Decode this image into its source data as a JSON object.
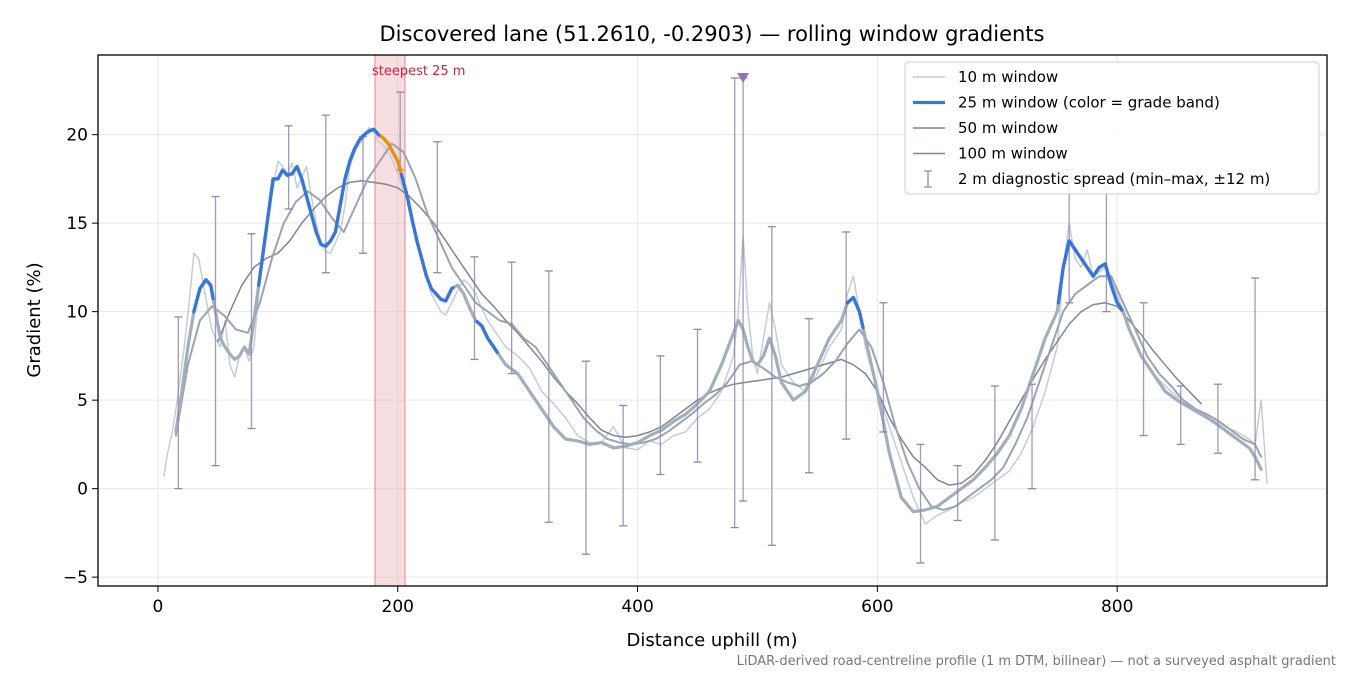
{
  "chart_data": {
    "type": "line",
    "title": "Discovered lane (51.2610, -0.2903) — rolling window gradients",
    "xlabel": "Distance uphill (m)",
    "ylabel": "Gradient (%)",
    "xlim": [
      -50,
      975
    ],
    "ylim": [
      -5.5,
      24.5
    ],
    "xticks": [
      0,
      200,
      400,
      600,
      800
    ],
    "yticks": [
      -5,
      0,
      5,
      10,
      15,
      20
    ],
    "ytick_labels": [
      "−5",
      "0",
      "5",
      "10",
      "15",
      "20"
    ],
    "grid": true,
    "legend": {
      "position": "top-right",
      "entries": [
        {
          "label": "10 m window",
          "color": "#c5ccd6",
          "kind": "line"
        },
        {
          "label": "25 m window (color = grade band)",
          "color": "#3a76d6",
          "kind": "line"
        },
        {
          "label": "50 m window",
          "color": "#9aa3b2",
          "kind": "line"
        },
        {
          "label": "100 m window",
          "color": "#7f8594",
          "kind": "line"
        },
        {
          "label": "2 m diagnostic spread (min–max, ±12 m)",
          "color": "#8f87b3",
          "kind": "errorbar"
        }
      ]
    },
    "annotations": {
      "steepest_label": "steepest 25 m",
      "steepest_span": [
        181,
        206
      ],
      "spike_marker": {
        "x": 488,
        "y": 23.2
      },
      "footnote": "LiDAR-derived road-centreline profile (1 m DTM, bilinear) — not a surveyed asphalt gradient"
    },
    "colors": {
      "band_steep": "#3a76d6",
      "band_peak": "#e8920c",
      "band_base": "#a3adbb",
      "steepest_shade": "#e7a9b0",
      "steepest_text": "#c0283a",
      "spread": "#8f87b3"
    },
    "series": [
      {
        "name": "10 m window",
        "x": [
          5,
          8,
          12,
          15,
          18,
          22,
          26,
          30,
          34,
          38,
          42,
          45,
          48,
          52,
          56,
          60,
          64,
          68,
          72,
          76,
          80,
          84,
          88,
          92,
          96,
          100,
          104,
          108,
          112,
          116,
          120,
          124,
          128,
          132,
          136,
          140,
          144,
          148,
          152,
          156,
          160,
          164,
          168,
          172,
          176,
          180,
          184,
          188,
          192,
          196,
          200,
          204,
          208,
          212,
          216,
          220,
          224,
          228,
          232,
          236,
          240,
          245,
          250,
          255,
          260,
          265,
          270,
          275,
          280,
          285,
          290,
          300,
          310,
          320,
          330,
          340,
          350,
          360,
          370,
          380,
          390,
          400,
          410,
          420,
          430,
          440,
          450,
          460,
          470,
          480,
          484,
          488,
          492,
          496,
          500,
          505,
          510,
          515,
          520,
          530,
          540,
          550,
          560,
          570,
          575,
          580,
          585,
          590,
          600,
          610,
          620,
          630,
          640,
          650,
          660,
          670,
          680,
          690,
          700,
          710,
          720,
          730,
          740,
          750,
          755,
          760,
          765,
          770,
          775,
          780,
          790,
          800,
          810,
          820,
          830,
          840,
          850,
          860,
          870,
          880,
          890,
          900,
          910,
          915,
          920,
          925
        ],
        "y": [
          0.7,
          2.0,
          3.2,
          4.5,
          6.0,
          8.0,
          10.5,
          13.3,
          13.0,
          11.5,
          10.0,
          9.0,
          8.5,
          8.0,
          9.5,
          7.0,
          6.3,
          7.5,
          8.0,
          7.2,
          8.0,
          11.0,
          13.5,
          15.5,
          17.0,
          18.5,
          18.2,
          17.8,
          18.4,
          17.0,
          17.6,
          18.2,
          16.5,
          15.0,
          13.8,
          13.4,
          13.3,
          13.9,
          14.5,
          16.0,
          18.2,
          19.0,
          19.5,
          19.8,
          20.4,
          20.2,
          19.6,
          19.4,
          19.0,
          18.5,
          17.8,
          17.0,
          16.5,
          15.5,
          14.0,
          13.0,
          12.0,
          11.0,
          10.5,
          10.0,
          9.8,
          10.5,
          11.2,
          11.8,
          11.5,
          11.0,
          10.2,
          9.5,
          9.0,
          8.5,
          8.0,
          7.5,
          6.8,
          5.5,
          4.8,
          4.0,
          3.0,
          2.6,
          2.6,
          3.5,
          2.3,
          2.2,
          2.7,
          2.5,
          3.0,
          3.2,
          4.0,
          4.5,
          5.5,
          7.5,
          10.0,
          14.3,
          10.0,
          7.5,
          6.5,
          8.5,
          10.5,
          9.0,
          7.0,
          6.0,
          5.5,
          6.5,
          8.0,
          9.0,
          11.0,
          12.0,
          10.0,
          8.0,
          5.5,
          3.5,
          1.5,
          -0.5,
          -2.0,
          -1.5,
          -1.2,
          -0.8,
          -0.5,
          0.0,
          0.5,
          1.0,
          2.0,
          3.5,
          5.5,
          8.0,
          12.5,
          15.0,
          13.0,
          12.5,
          13.5,
          12.0,
          12.5,
          11.0,
          9.0,
          7.5,
          6.5,
          5.8,
          5.2,
          4.8,
          4.3,
          4.0,
          3.5,
          3.2,
          2.8,
          2.5,
          5.0,
          0.3
        ]
      },
      {
        "name": "25 m window (color = grade band)",
        "x": [
          15,
          20,
          25,
          30,
          35,
          40,
          44,
          48,
          52,
          56,
          60,
          64,
          68,
          72,
          76,
          80,
          84,
          88,
          92,
          96,
          100,
          104,
          108,
          112,
          116,
          120,
          124,
          128,
          132,
          136,
          140,
          144,
          148,
          152,
          156,
          160,
          164,
          168,
          172,
          176,
          180,
          184,
          188,
          192,
          196,
          200,
          204,
          208,
          212,
          216,
          220,
          224,
          228,
          232,
          236,
          240,
          245,
          250,
          255,
          260,
          265,
          270,
          275,
          280,
          285,
          290,
          300,
          310,
          320,
          330,
          340,
          350,
          360,
          370,
          380,
          390,
          400,
          410,
          420,
          430,
          440,
          450,
          460,
          470,
          480,
          484,
          488,
          492,
          496,
          500,
          505,
          510,
          515,
          520,
          530,
          540,
          550,
          560,
          570,
          575,
          580,
          585,
          590,
          600,
          610,
          620,
          630,
          640,
          650,
          660,
          670,
          680,
          690,
          700,
          710,
          720,
          730,
          740,
          750,
          755,
          760,
          765,
          770,
          775,
          780,
          785,
          790,
          795,
          800,
          805,
          810,
          820,
          830,
          840,
          850,
          860,
          870,
          880,
          890,
          900,
          910,
          915,
          920
        ],
        "y": [
          3.2,
          5.5,
          8.0,
          10.0,
          11.3,
          11.8,
          11.5,
          10.0,
          8.5,
          8.0,
          7.6,
          7.3,
          7.5,
          8.0,
          7.6,
          9.5,
          11.5,
          13.5,
          15.5,
          17.5,
          17.5,
          18.0,
          17.7,
          17.8,
          18.2,
          17.5,
          16.5,
          15.5,
          14.5,
          13.8,
          13.7,
          14.0,
          14.5,
          16.0,
          17.5,
          18.5,
          19.2,
          19.7,
          20.0,
          20.2,
          20.3,
          20.0,
          19.8,
          19.5,
          19.0,
          18.5,
          17.5,
          16.5,
          15.2,
          14.0,
          13.0,
          12.0,
          11.3,
          11.0,
          10.7,
          10.6,
          11.3,
          11.5,
          11.0,
          10.2,
          9.5,
          9.2,
          8.5,
          8.0,
          7.5,
          7.0,
          6.5,
          5.5,
          4.5,
          3.5,
          2.8,
          2.7,
          2.5,
          2.6,
          2.3,
          2.4,
          2.6,
          3.0,
          3.3,
          3.8,
          4.2,
          4.8,
          5.5,
          7.0,
          8.8,
          9.5,
          9.0,
          8.0,
          7.2,
          7.0,
          7.5,
          8.5,
          7.5,
          6.0,
          5.0,
          5.5,
          7.0,
          8.5,
          9.5,
          10.5,
          10.8,
          10.0,
          8.5,
          5.5,
          2.0,
          -0.5,
          -1.3,
          -1.2,
          -1.0,
          -0.5,
          0.0,
          0.5,
          1.2,
          2.0,
          3.0,
          4.5,
          6.5,
          8.5,
          10.0,
          12.5,
          14.0,
          13.5,
          13.0,
          12.5,
          12.0,
          12.5,
          12.7,
          11.5,
          10.5,
          10.0,
          9.0,
          7.5,
          6.5,
          5.5,
          5.0,
          4.6,
          4.2,
          3.8,
          3.3,
          2.8,
          2.3,
          1.8,
          1.1
        ]
      },
      {
        "name": "50 m window",
        "x": [
          15,
          25,
          35,
          45,
          55,
          65,
          75,
          85,
          95,
          105,
          115,
          125,
          135,
          145,
          155,
          165,
          175,
          185,
          195,
          205,
          215,
          225,
          235,
          245,
          255,
          265,
          275,
          285,
          295,
          305,
          315,
          325,
          335,
          345,
          355,
          365,
          375,
          385,
          395,
          405,
          415,
          425,
          435,
          445,
          455,
          465,
          475,
          485,
          495,
          505,
          515,
          525,
          535,
          545,
          555,
          565,
          575,
          585,
          595,
          605,
          615,
          625,
          635,
          645,
          655,
          665,
          675,
          685,
          695,
          705,
          715,
          725,
          735,
          745,
          755,
          765,
          775,
          785,
          795,
          805,
          815,
          825,
          835,
          845,
          855,
          865,
          875,
          885,
          895,
          905,
          915,
          920
        ],
        "y": [
          3.0,
          7.0,
          9.5,
          10.3,
          9.8,
          9.0,
          8.8,
          10.5,
          13.0,
          15.0,
          16.2,
          16.8,
          16.3,
          15.3,
          14.5,
          16.0,
          17.5,
          18.5,
          19.5,
          19.0,
          17.5,
          15.5,
          14.0,
          12.5,
          11.5,
          10.5,
          10.0,
          9.5,
          9.3,
          8.5,
          8.0,
          7.0,
          6.0,
          5.0,
          4.0,
          3.3,
          2.8,
          2.6,
          2.5,
          2.6,
          2.8,
          3.2,
          3.7,
          4.2,
          4.8,
          5.3,
          6.0,
          7.0,
          7.2,
          6.8,
          6.3,
          6.0,
          5.8,
          6.0,
          6.5,
          7.2,
          8.2,
          9.0,
          8.0,
          6.0,
          3.5,
          1.5,
          0.0,
          -1.0,
          -1.2,
          -1.0,
          -0.5,
          0.0,
          0.5,
          1.2,
          2.5,
          4.0,
          6.0,
          8.0,
          10.0,
          11.0,
          11.5,
          12.0,
          12.0,
          10.5,
          9.0,
          7.5,
          6.5,
          5.8,
          5.0,
          4.5,
          4.2,
          3.8,
          3.3,
          2.8,
          2.5,
          1.8
        ]
      },
      {
        "name": "100 m window",
        "x": [
          50,
          60,
          70,
          80,
          90,
          100,
          110,
          120,
          130,
          140,
          150,
          160,
          170,
          180,
          190,
          200,
          210,
          220,
          230,
          240,
          250,
          260,
          270,
          280,
          290,
          300,
          310,
          320,
          330,
          340,
          350,
          360,
          370,
          380,
          390,
          400,
          410,
          420,
          430,
          440,
          450,
          460,
          470,
          480,
          490,
          500,
          510,
          520,
          530,
          540,
          550,
          560,
          570,
          580,
          590,
          600,
          610,
          620,
          630,
          640,
          650,
          660,
          670,
          680,
          690,
          700,
          710,
          720,
          730,
          740,
          750,
          760,
          770,
          780,
          790,
          800,
          810,
          820,
          830,
          840,
          850,
          860,
          870
        ],
        "y": [
          8.3,
          10.0,
          11.5,
          12.5,
          13.0,
          13.3,
          14.0,
          15.0,
          15.8,
          16.5,
          17.0,
          17.3,
          17.4,
          17.3,
          17.2,
          17.0,
          16.5,
          15.8,
          15.0,
          14.0,
          13.0,
          12.0,
          11.0,
          10.3,
          9.5,
          8.8,
          8.0,
          7.2,
          6.3,
          5.5,
          4.8,
          4.0,
          3.3,
          3.0,
          2.9,
          3.0,
          3.2,
          3.5,
          4.0,
          4.5,
          5.0,
          5.4,
          5.7,
          5.9,
          6.0,
          6.1,
          6.2,
          6.3,
          6.5,
          6.7,
          6.9,
          7.1,
          7.3,
          7.0,
          6.5,
          5.5,
          4.0,
          2.8,
          1.8,
          1.2,
          0.5,
          0.2,
          0.3,
          0.8,
          1.6,
          2.6,
          3.8,
          5.0,
          6.2,
          7.3,
          8.3,
          9.3,
          10.0,
          10.4,
          10.5,
          10.3,
          9.5,
          8.7,
          7.8,
          7.0,
          6.2,
          5.5,
          4.8
        ]
      }
    ],
    "spread_bars": [
      {
        "x": 17,
        "min": 0.0,
        "max": 9.7
      },
      {
        "x": 48,
        "min": 1.3,
        "max": 16.5
      },
      {
        "x": 78,
        "min": 3.4,
        "max": 14.4
      },
      {
        "x": 109,
        "min": 15.8,
        "max": 20.5
      },
      {
        "x": 140,
        "min": 12.2,
        "max": 21.1
      },
      {
        "x": 171,
        "min": 13.3,
        "max": 19.9
      },
      {
        "x": 202,
        "min": 18.0,
        "max": 22.4
      },
      {
        "x": 233,
        "min": 12.2,
        "max": 19.6
      },
      {
        "x": 264,
        "min": 7.3,
        "max": 13.1
      },
      {
        "x": 295,
        "min": 6.5,
        "max": 12.8
      },
      {
        "x": 326,
        "min": -1.9,
        "max": 12.3
      },
      {
        "x": 357,
        "min": -3.7,
        "max": 7.2
      },
      {
        "x": 388,
        "min": -2.1,
        "max": 4.7
      },
      {
        "x": 419,
        "min": 0.8,
        "max": 7.5
      },
      {
        "x": 450,
        "min": 1.5,
        "max": 9.0
      },
      {
        "x": 481,
        "min": -2.2,
        "max": 23.2
      },
      {
        "x": 488,
        "min": -0.7,
        "max": 23.2
      },
      {
        "x": 512,
        "min": -3.2,
        "max": 14.8
      },
      {
        "x": 543,
        "min": 0.9,
        "max": 9.6
      },
      {
        "x": 574,
        "min": 2.8,
        "max": 14.5
      },
      {
        "x": 605,
        "min": 3.2,
        "max": 10.5
      },
      {
        "x": 636,
        "min": -4.2,
        "max": 2.5
      },
      {
        "x": 667,
        "min": -1.8,
        "max": 1.3
      },
      {
        "x": 698,
        "min": -2.9,
        "max": 5.8
      },
      {
        "x": 729,
        "min": 0.0,
        "max": 5.9
      },
      {
        "x": 760,
        "min": 10.5,
        "max": 18.0
      },
      {
        "x": 791,
        "min": 10.0,
        "max": 17.0
      },
      {
        "x": 822,
        "min": 3.0,
        "max": 10.5
      },
      {
        "x": 853,
        "min": 2.5,
        "max": 5.8
      },
      {
        "x": 884,
        "min": 2.0,
        "max": 5.9
      },
      {
        "x": 915,
        "min": 0.5,
        "max": 11.9
      }
    ],
    "band_segments": [
      {
        "from": 30,
        "to": 46,
        "color": "#3a76d6"
      },
      {
        "from": 84,
        "to": 186,
        "color": "#3a76d6"
      },
      {
        "from": 186,
        "to": 203,
        "color": "#e8920c"
      },
      {
        "from": 203,
        "to": 246,
        "color": "#3a76d6"
      },
      {
        "from": 266,
        "to": 283,
        "color": "#3a76d6"
      },
      {
        "from": 575,
        "to": 588,
        "color": "#3a76d6"
      },
      {
        "from": 751,
        "to": 804,
        "color": "#3a76d6"
      }
    ]
  }
}
